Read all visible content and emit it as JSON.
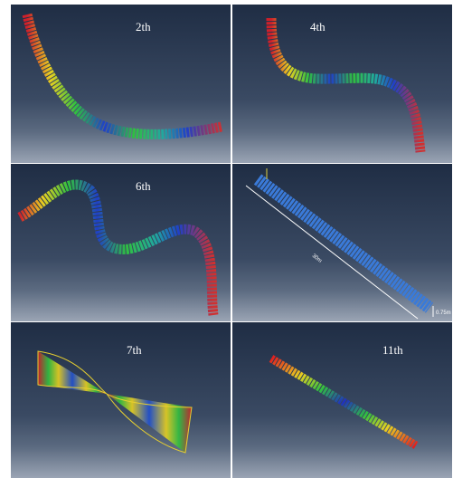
{
  "panels": [
    {
      "label": "2th"
    },
    {
      "label": "4th"
    },
    {
      "label": "6th"
    },
    {
      "dimensions": {
        "length": "30m",
        "width": "0.75m"
      }
    },
    {
      "label": "7th"
    },
    {
      "label": "11th"
    }
  ]
}
